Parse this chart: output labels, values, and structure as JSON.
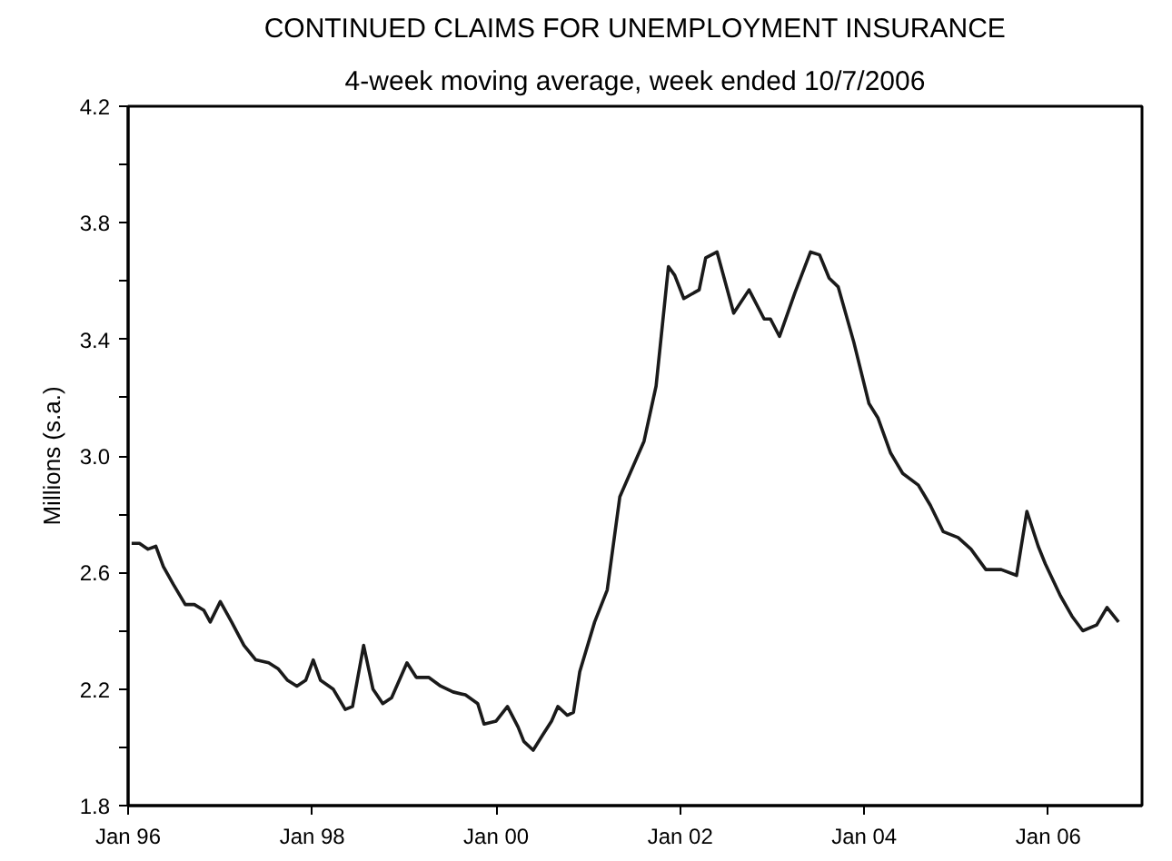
{
  "chart_data": {
    "type": "line",
    "title": "CONTINUED CLAIMS FOR UNEMPLOYMENT INSURANCE",
    "subtitle": "4-week moving average, week ended 10/7/2006",
    "ylabel": "Millions (s.a.)",
    "x": [
      "1996-01-15",
      "1996-02-15",
      "1996-03-20",
      "1996-04-20",
      "1996-05-20",
      "1996-06-28",
      "1996-08-15",
      "1996-09-20",
      "1996-10-28",
      "1996-11-22",
      "1997-01-01",
      "1997-02-15",
      "1997-04-05",
      "1997-05-22",
      "1997-07-12",
      "1997-08-18",
      "1997-09-25",
      "1997-11-01",
      "1997-12-06",
      "1998-01-05",
      "1998-02-03",
      "1998-03-25",
      "1998-05-12",
      "1998-06-10",
      "1998-07-24",
      "1998-08-30",
      "1998-10-08",
      "1998-11-12",
      "1999-01-12",
      "1999-02-18",
      "1999-04-08",
      "1999-05-26",
      "1999-07-14",
      "1999-09-01",
      "1999-10-20",
      "1999-11-14",
      "2000-01-01",
      "2000-02-15",
      "2000-03-28",
      "2000-04-20",
      "2000-05-27",
      "2000-07-02",
      "2000-08-08",
      "2000-09-02",
      "2000-10-09",
      "2000-11-03",
      "2000-11-28",
      "2001-01-26",
      "2001-03-17",
      "2001-05-06",
      "2001-08-10",
      "2001-09-27",
      "2001-11-15",
      "2001-12-10",
      "2002-01-15",
      "2002-03-17",
      "2002-04-12",
      "2002-05-27",
      "2002-08-01",
      "2002-10-01",
      "2002-11-30",
      "2002-12-25",
      "2003-01-30",
      "2003-04-01",
      "2003-06-02",
      "2003-07-08",
      "2003-08-15",
      "2003-09-20",
      "2003-11-21",
      "2004-01-20",
      "2004-02-25",
      "2004-04-15",
      "2004-06-02",
      "2004-08-03",
      "2004-09-20",
      "2004-11-10",
      "2005-01-08",
      "2005-02-28",
      "2005-04-28",
      "2005-06-28",
      "2005-08-28",
      "2005-10-08",
      "2005-11-22",
      "2005-12-20",
      "2006-02-18",
      "2006-04-05",
      "2006-05-18",
      "2006-07-12",
      "2006-08-22",
      "2006-10-07"
    ],
    "series": [
      {
        "color": "#1a1a1a",
        "values": [
          2.7,
          2.7,
          2.68,
          2.69,
          2.62,
          2.56,
          2.49,
          2.49,
          2.47,
          2.43,
          2.5,
          2.43,
          2.35,
          2.3,
          2.29,
          2.27,
          2.23,
          2.21,
          2.23,
          2.3,
          2.23,
          2.2,
          2.13,
          2.14,
          2.35,
          2.2,
          2.15,
          2.17,
          2.29,
          2.24,
          2.24,
          2.21,
          2.19,
          2.18,
          2.15,
          2.08,
          2.09,
          2.14,
          2.07,
          2.02,
          1.99,
          2.04,
          2.09,
          2.14,
          2.11,
          2.12,
          2.26,
          2.43,
          2.54,
          2.86,
          3.05,
          3.24,
          3.65,
          3.62,
          3.54,
          3.57,
          3.68,
          3.7,
          3.49,
          3.57,
          3.47,
          3.47,
          3.41,
          3.56,
          3.7,
          3.69,
          3.61,
          3.58,
          3.39,
          3.18,
          3.13,
          3.01,
          2.94,
          2.9,
          2.83,
          2.74,
          2.72,
          2.68,
          2.61,
          2.61,
          2.59,
          2.81,
          2.69,
          2.63,
          2.52,
          2.45,
          2.4,
          2.42,
          2.48,
          2.43
        ]
      }
    ],
    "xlim": [
      "1996-01-01",
      "2007-01-08"
    ],
    "xticks": [
      {
        "value": "1996-01-01",
        "label": "Jan 96"
      },
      {
        "value": "1998-01-01",
        "label": "Jan 98"
      },
      {
        "value": "2000-01-01",
        "label": "Jan 00"
      },
      {
        "value": "2002-01-01",
        "label": "Jan 02"
      },
      {
        "value": "2004-01-01",
        "label": "Jan 04"
      },
      {
        "value": "2006-01-01",
        "label": "Jan 06"
      }
    ],
    "ylim": [
      1.8,
      4.2
    ],
    "yticks": [
      1.8,
      {
        "value": 2.0,
        "label": null
      },
      2.2,
      {
        "value": 2.4,
        "label": null
      },
      2.6,
      {
        "value": 2.8,
        "label": null
      },
      {
        "value": 3.0,
        "label": "3.0"
      },
      {
        "value": 3.2,
        "label": null
      },
      3.4,
      {
        "value": 3.6,
        "label": null
      },
      3.8,
      {
        "value": 4.0,
        "label": null
      },
      4.2
    ],
    "marker": "none",
    "line_style": "solid"
  }
}
